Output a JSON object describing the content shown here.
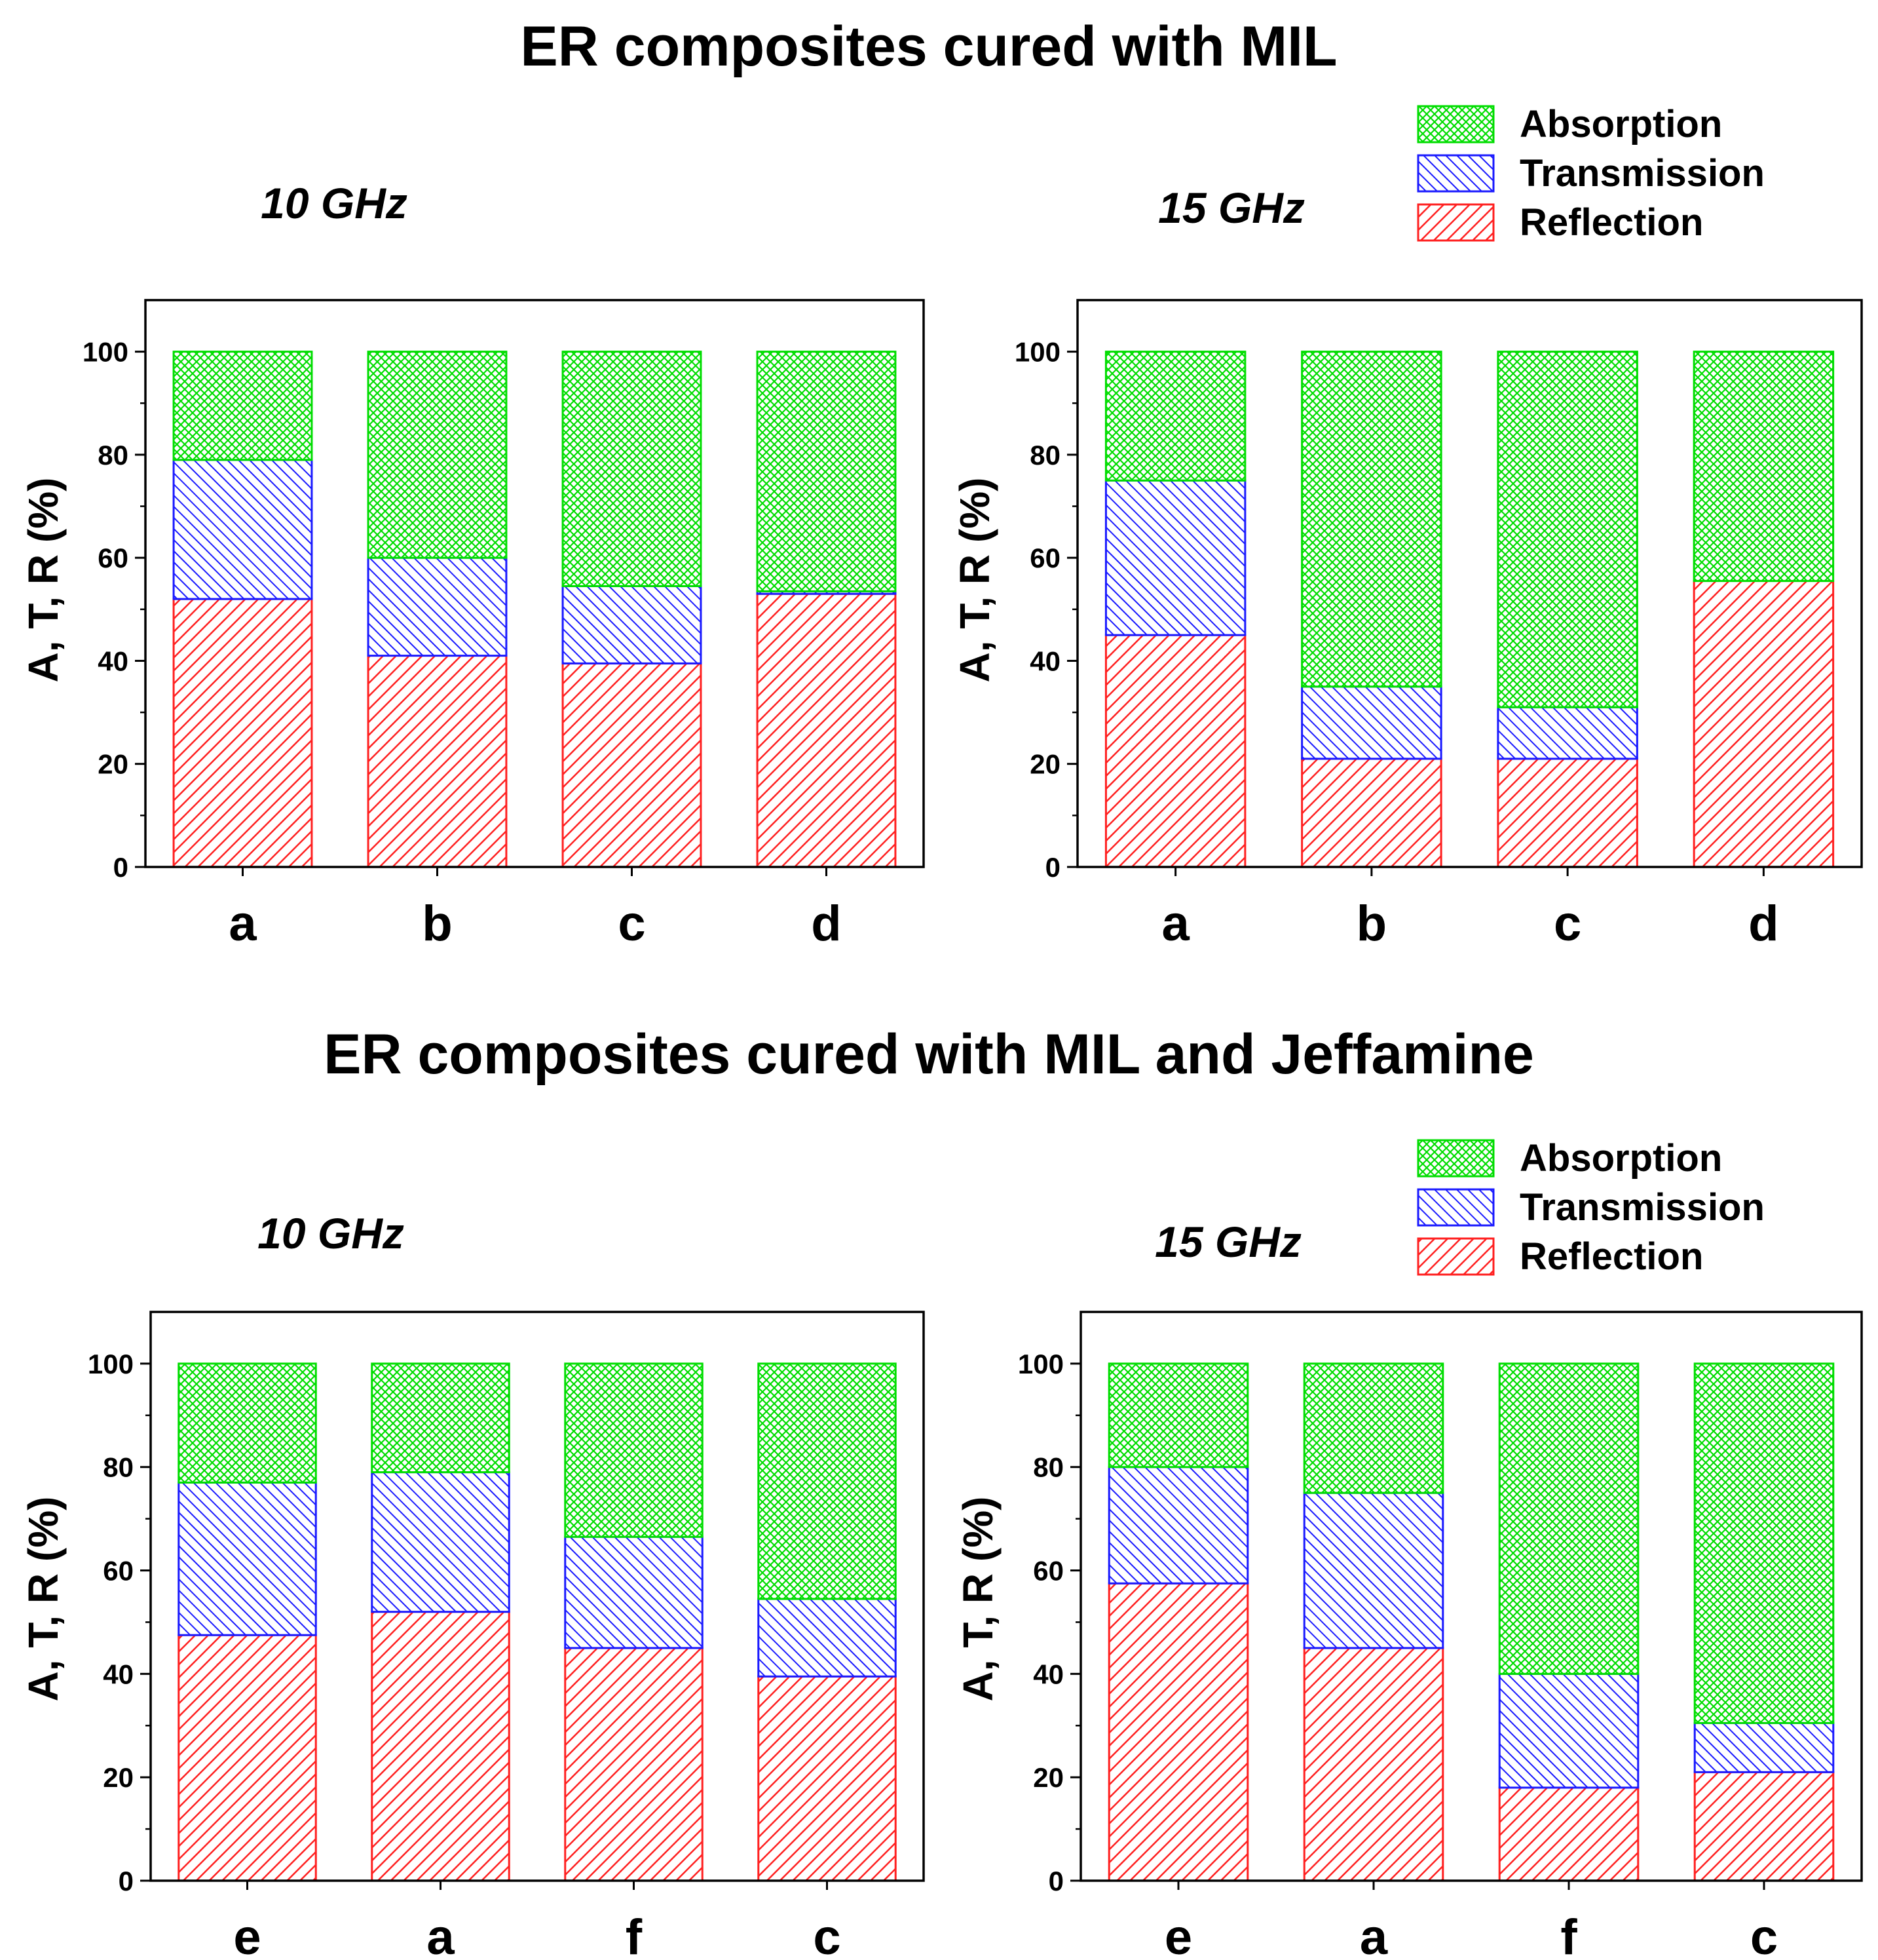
{
  "sections": [
    {
      "title": "ER composites cured with MIL"
    },
    {
      "title": "ER composites cured with MIL and Jeffamine"
    }
  ],
  "legend": {
    "items": [
      {
        "label": "Absorption",
        "color": "#00dd00"
      },
      {
        "label": "Transmission",
        "color": "#1a1aff"
      },
      {
        "label": "Reflection",
        "color": "#ff2020"
      }
    ]
  },
  "chart_data": [
    {
      "type": "bar",
      "stacked": true,
      "subtitle": "10 GHz",
      "section": "ER composites cured with MIL",
      "categories": [
        "a",
        "b",
        "c",
        "d"
      ],
      "series": [
        {
          "name": "Reflection",
          "values": [
            52,
            41,
            39.5,
            53
          ]
        },
        {
          "name": "Transmission",
          "values": [
            27,
            19,
            15,
            0.5
          ]
        },
        {
          "name": "Absorption",
          "values": [
            21,
            40,
            45.5,
            46.5
          ]
        }
      ],
      "xlabel": "",
      "ylabel": "A, T, R (%)",
      "ylim": [
        0,
        110
      ],
      "yticks": [
        "0",
        "20",
        "40",
        "60",
        "80",
        "100"
      ]
    },
    {
      "type": "bar",
      "stacked": true,
      "subtitle": "15 GHz",
      "section": "ER composites cured with MIL",
      "categories": [
        "a",
        "b",
        "c",
        "d"
      ],
      "series": [
        {
          "name": "Reflection",
          "values": [
            45,
            21,
            21,
            55.5
          ]
        },
        {
          "name": "Transmission",
          "values": [
            30,
            14,
            10,
            0
          ]
        },
        {
          "name": "Absorption",
          "values": [
            25,
            65,
            69,
            44.5
          ]
        }
      ],
      "xlabel": "",
      "ylabel": "A, T, R (%)",
      "ylim": [
        0,
        110
      ],
      "yticks": [
        "0",
        "20",
        "40",
        "60",
        "80",
        "100"
      ]
    },
    {
      "type": "bar",
      "stacked": true,
      "subtitle": "10 GHz",
      "section": "ER composites cured with MIL and Jeffamine",
      "categories": [
        "e",
        "a",
        "f",
        "c"
      ],
      "series": [
        {
          "name": "Reflection",
          "values": [
            47.5,
            52,
            45,
            39.5
          ]
        },
        {
          "name": "Transmission",
          "values": [
            29.5,
            27,
            21.5,
            15
          ]
        },
        {
          "name": "Absorption",
          "values": [
            23,
            21,
            33.5,
            45.5
          ]
        }
      ],
      "xlabel": "",
      "ylabel": "A, T, R (%)",
      "ylim": [
        0,
        110
      ],
      "yticks": [
        "0",
        "20",
        "40",
        "60",
        "80",
        "100"
      ]
    },
    {
      "type": "bar",
      "stacked": true,
      "subtitle": "15 GHz",
      "section": "ER composites cured with MIL and Jeffamine",
      "categories": [
        "e",
        "a",
        "f",
        "c"
      ],
      "series": [
        {
          "name": "Reflection",
          "values": [
            57.5,
            45,
            18,
            21
          ]
        },
        {
          "name": "Transmission",
          "values": [
            22.5,
            30,
            22,
            9.5
          ]
        },
        {
          "name": "Absorption",
          "values": [
            20,
            25,
            60,
            69.5
          ]
        }
      ],
      "xlabel": "",
      "ylabel": "A, T, R (%)",
      "ylim": [
        0,
        110
      ],
      "yticks": [
        "0",
        "20",
        "40",
        "60",
        "80",
        "100"
      ]
    }
  ]
}
